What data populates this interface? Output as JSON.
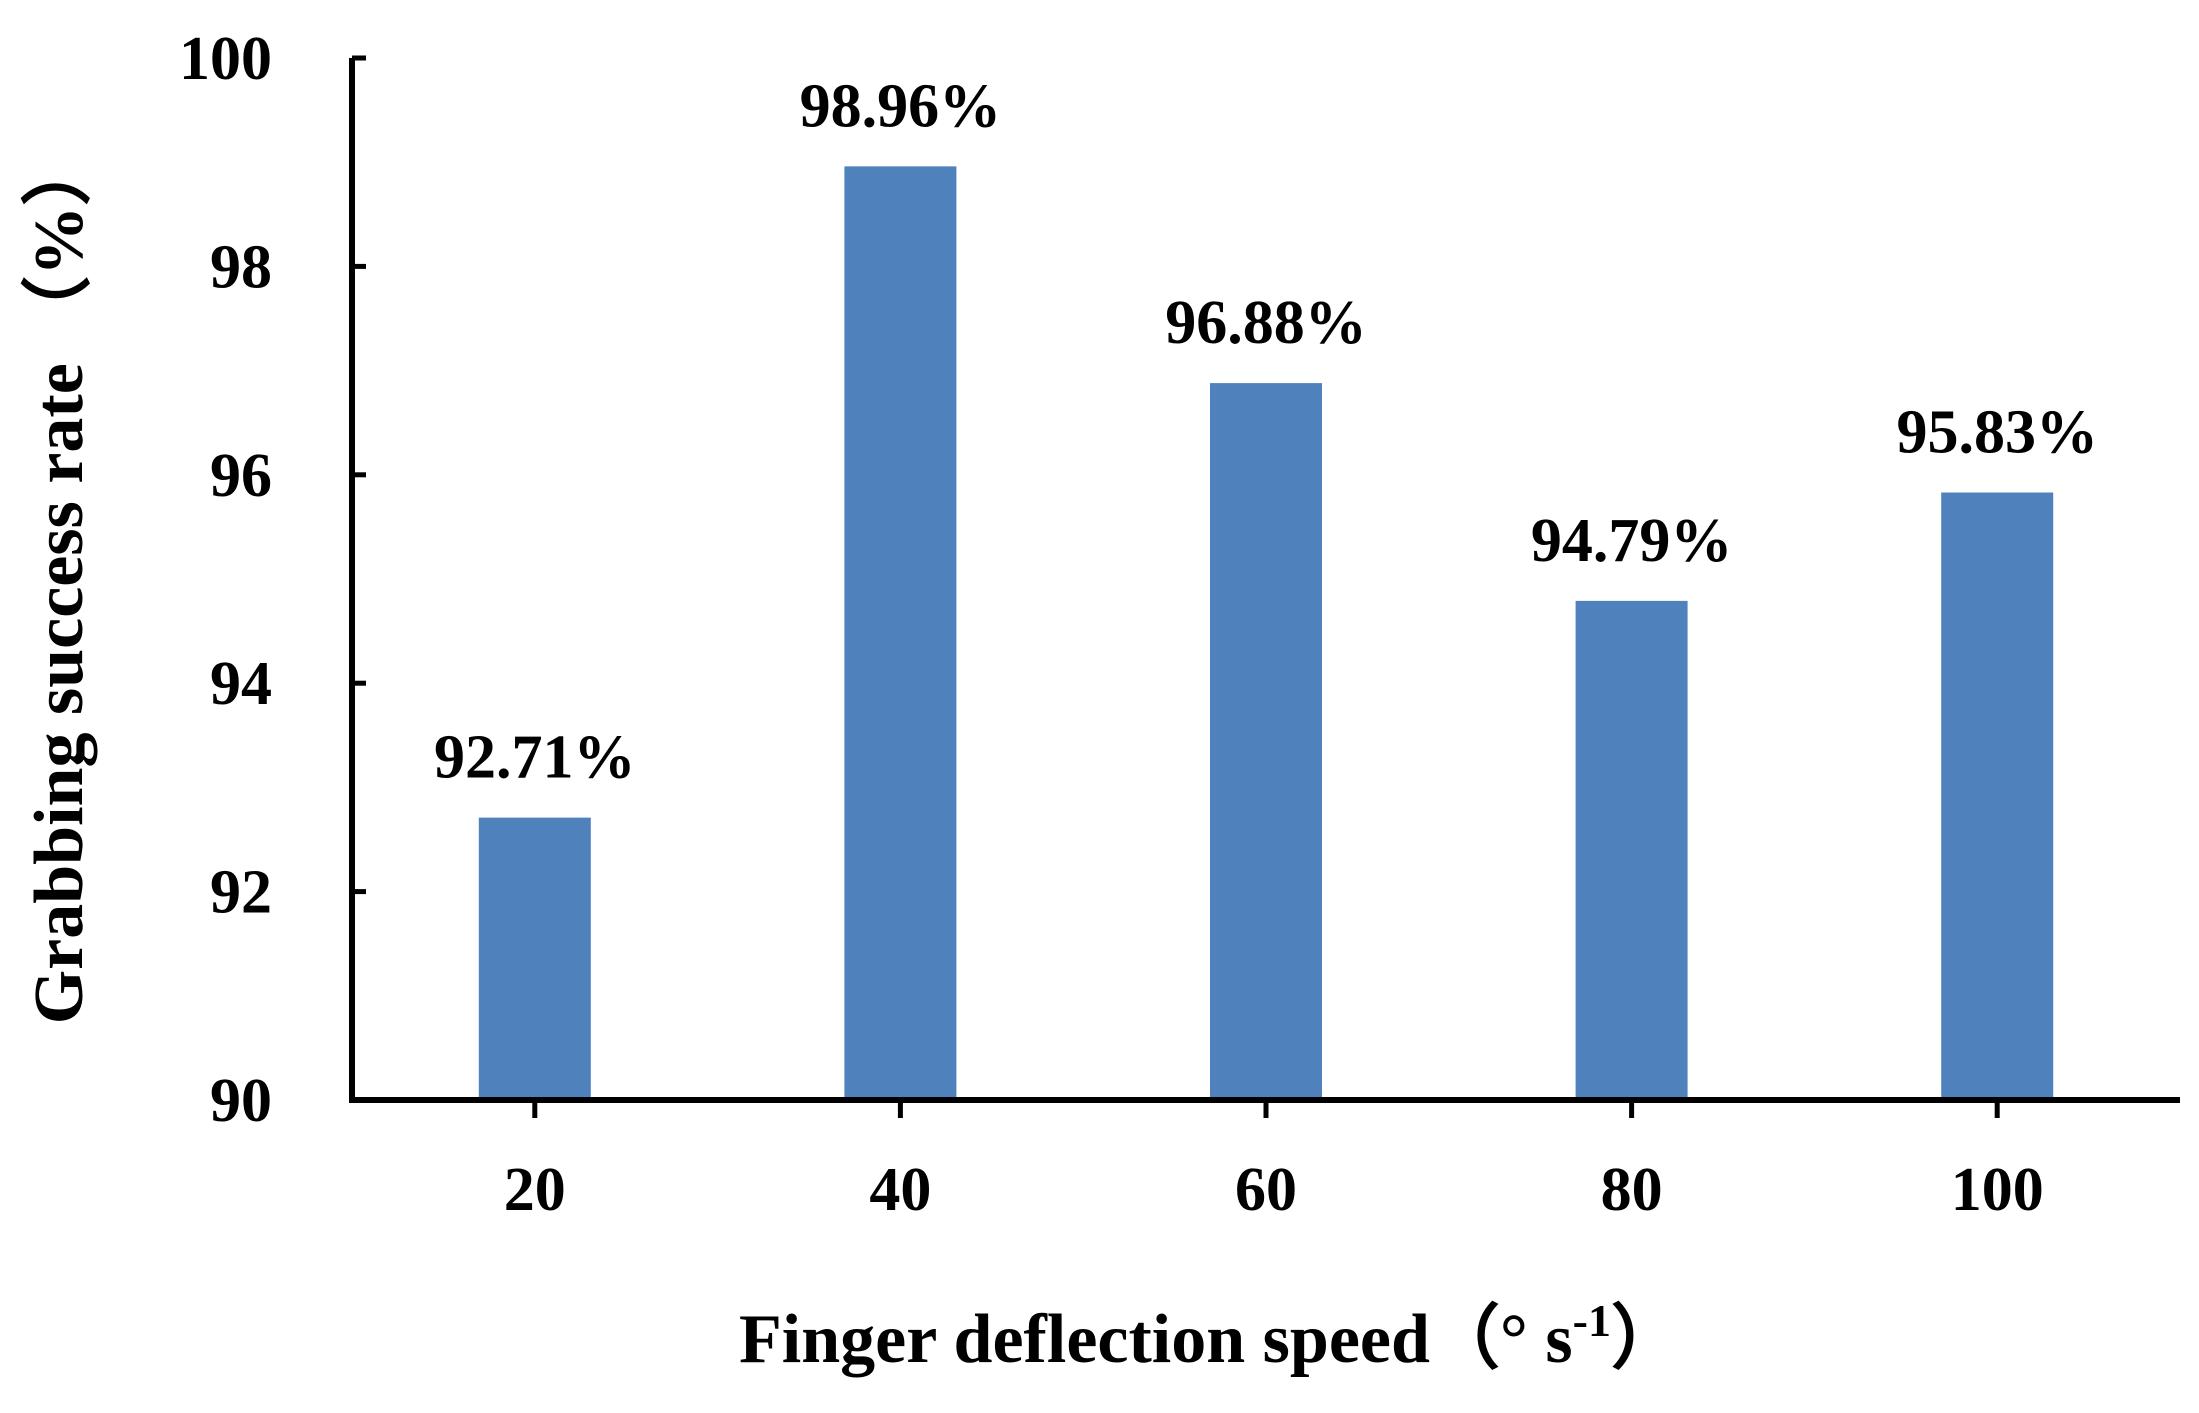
{
  "chart_data": {
    "type": "bar",
    "categories": [
      "20",
      "40",
      "60",
      "80",
      "100"
    ],
    "values": [
      92.71,
      98.96,
      96.88,
      94.79,
      95.83
    ],
    "data_labels": [
      "92.71%",
      "98.96%",
      "96.88%",
      "94.79%",
      "95.83%"
    ],
    "xlabel": {
      "main": "Finger deflection speed（° s",
      "superscript": "-1",
      "close": "）"
    },
    "ylabel": "Grabbing   success rate （%）",
    "ylim": [
      90,
      100
    ],
    "yticks": [
      "90",
      "92",
      "94",
      "96",
      "98",
      "100"
    ],
    "grid": false,
    "legend": "none",
    "bar_color": "#4f81bd"
  }
}
